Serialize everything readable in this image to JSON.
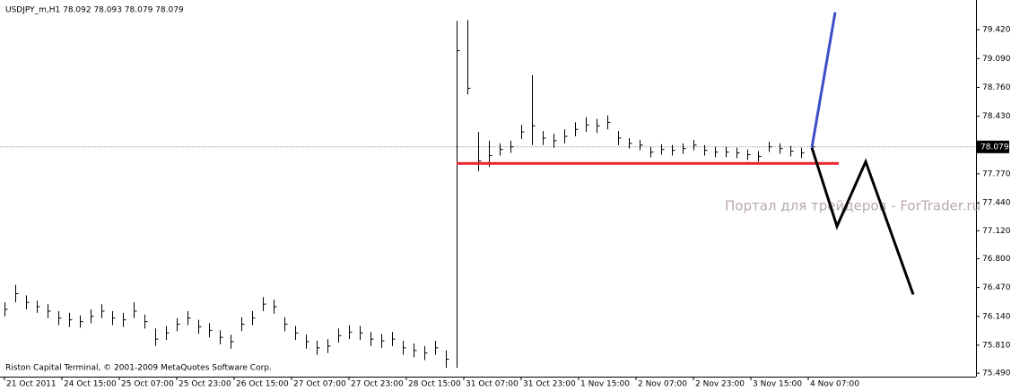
{
  "chart_data": {
    "type": "ohlc",
    "title": "USDJPY_m,H1  78.092 78.093 78.079 78.079",
    "footer": "Riston Capital Terminal, © 2001-2009 MetaQuotes Software Corp.",
    "watermark": "Портал для трейдеров - ForTrader.ru",
    "color": "#000000",
    "x": [
      0,
      3,
      6,
      9,
      12,
      15,
      18,
      21,
      24,
      27,
      30,
      33,
      36,
      39,
      42,
      45,
      48,
      51,
      54,
      57,
      60,
      63,
      66,
      69,
      72,
      75,
      78,
      81,
      84,
      87,
      90,
      93,
      96,
      99,
      102,
      105,
      108,
      111,
      114,
      117,
      120,
      123,
      126,
      129,
      132,
      135,
      138,
      141,
      144,
      147,
      150,
      153,
      156,
      159,
      162,
      165,
      168,
      171,
      174,
      177,
      180,
      183,
      186,
      189,
      192,
      195,
      198,
      201,
      204,
      207,
      210,
      213,
      216,
      219,
      222,
      225
    ],
    "high": [
      76.3,
      76.5,
      76.38,
      76.32,
      76.28,
      76.2,
      76.18,
      76.15,
      76.22,
      76.28,
      76.2,
      76.18,
      76.3,
      76.16,
      76.0,
      76.03,
      76.12,
      76.2,
      76.1,
      76.06,
      75.98,
      75.93,
      76.13,
      76.2,
      76.36,
      76.33,
      76.13,
      76.03,
      75.93,
      75.86,
      75.88,
      76.0,
      76.04,
      76.03,
      75.96,
      75.94,
      75.96,
      75.86,
      75.83,
      75.8,
      75.86,
      75.75,
      79.52,
      79.53,
      78.25,
      78.15,
      78.12,
      78.15,
      78.33,
      78.9,
      78.26,
      78.23,
      78.28,
      78.36,
      78.42,
      78.4,
      78.44,
      78.26,
      78.18,
      78.16,
      78.08,
      78.11,
      78.1,
      78.12,
      78.16,
      78.1,
      78.08,
      78.08,
      78.07,
      78.05,
      78.03,
      78.14,
      78.12,
      78.09,
      78.07,
      78.14
    ],
    "low": [
      76.14,
      76.3,
      76.22,
      76.18,
      76.12,
      76.04,
      76.02,
      76.01,
      76.06,
      76.12,
      76.04,
      76.02,
      76.12,
      76.0,
      75.8,
      75.87,
      75.97,
      76.04,
      75.94,
      75.9,
      75.82,
      75.77,
      75.97,
      76.04,
      76.2,
      76.17,
      75.97,
      75.87,
      75.77,
      75.7,
      75.72,
      75.84,
      75.88,
      75.87,
      75.8,
      75.78,
      75.8,
      75.7,
      75.67,
      75.64,
      75.7,
      75.55,
      75.55,
      78.68,
      77.8,
      77.85,
      77.98,
      78.01,
      78.17,
      78.1,
      78.1,
      78.07,
      78.12,
      78.2,
      78.25,
      78.24,
      78.28,
      78.1,
      78.06,
      78.04,
      77.96,
      77.99,
      77.98,
      78.0,
      78.04,
      77.98,
      77.96,
      77.96,
      77.95,
      77.93,
      77.91,
      78.02,
      78.0,
      77.97,
      77.95,
      78.02
    ],
    "close": [
      76.22,
      76.4,
      76.3,
      76.25,
      76.2,
      76.12,
      76.1,
      76.08,
      76.14,
      76.2,
      76.12,
      76.1,
      76.2,
      76.08,
      75.88,
      75.95,
      76.05,
      76.12,
      76.02,
      75.98,
      75.9,
      75.85,
      76.05,
      76.12,
      76.28,
      76.25,
      76.05,
      75.95,
      75.85,
      75.78,
      75.8,
      75.92,
      75.96,
      75.95,
      75.88,
      75.86,
      75.88,
      75.78,
      75.75,
      75.72,
      75.78,
      75.65,
      79.18,
      78.75,
      77.92,
      77.98,
      78.05,
      78.08,
      78.25,
      78.32,
      78.18,
      78.15,
      78.2,
      78.28,
      78.33,
      78.32,
      78.36,
      78.18,
      78.12,
      78.1,
      78.02,
      78.05,
      78.04,
      78.06,
      78.1,
      78.04,
      78.02,
      78.02,
      78.01,
      77.99,
      77.97,
      78.08,
      78.06,
      78.03,
      78.01,
      78.08
    ],
    "current_price": {
      "value": 78.079,
      "label": "78.079"
    },
    "lines": [
      {
        "color": "#e8202a",
        "x": [
          126,
          232.5
        ],
        "y": [
          77.89,
          77.89
        ]
      },
      {
        "color": "#3c4fc8",
        "x": [
          225,
          231.5
        ],
        "y": [
          78.07,
          79.62
        ]
      },
      {
        "color": "#000000",
        "x": [
          225,
          232,
          240,
          253.25
        ],
        "y": [
          78.07,
          77.17,
          77.91,
          76.39
        ]
      }
    ],
    "xlim": [
      -1.25,
      270.75
    ],
    "ylim": [
      75.45,
      79.76
    ],
    "xticks": [
      {
        "value": 0,
        "label": "21 Oct 2011"
      },
      {
        "value": 16,
        "label": "24 Oct 15:00"
      },
      {
        "value": 32,
        "label": "25 Oct 07:00"
      },
      {
        "value": 48,
        "label": "25 Oct 23:00"
      },
      {
        "value": 64,
        "label": "26 Oct 15:00"
      },
      {
        "value": 80,
        "label": "27 Oct 07:00"
      },
      {
        "value": 96,
        "label": "27 Oct 23:00"
      },
      {
        "value": 112,
        "label": "28 Oct 15:00"
      },
      {
        "value": 128,
        "label": "31 Oct 07:00"
      },
      {
        "value": 144,
        "label": "31 Oct 23:00"
      },
      {
        "value": 160,
        "label": "1 Nov 15:00"
      },
      {
        "value": 176,
        "label": "2 Nov 07:00"
      },
      {
        "value": 192,
        "label": "2 Nov 23:00"
      },
      {
        "value": 208,
        "label": "3 Nov 15:00"
      },
      {
        "value": 224,
        "label": "4 Nov 07:00"
      }
    ],
    "yticks": [
      {
        "value": 79.42,
        "label": "79.420"
      },
      {
        "value": 79.09,
        "label": "79.090"
      },
      {
        "value": 78.76,
        "label": "78.760"
      },
      {
        "value": 78.43,
        "label": "78.430"
      },
      {
        "value": 77.77,
        "label": "77.770"
      },
      {
        "value": 77.44,
        "label": "77.440"
      },
      {
        "value": 77.12,
        "label": "77.120"
      },
      {
        "value": 76.8,
        "label": "76.800"
      },
      {
        "value": 76.47,
        "label": "76.470"
      },
      {
        "value": 76.14,
        "label": "76.140"
      },
      {
        "value": 75.81,
        "label": "75.810"
      },
      {
        "value": 75.49,
        "label": "75.490"
      }
    ]
  }
}
